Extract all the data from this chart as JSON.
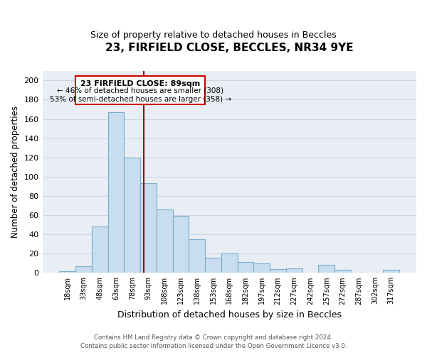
{
  "title": "23, FIRFIELD CLOSE, BECCLES, NR34 9YE",
  "subtitle": "Size of property relative to detached houses in Beccles",
  "xlabel": "Distribution of detached houses by size in Beccles",
  "ylabel": "Number of detached properties",
  "bar_color": "#c8ddef",
  "bar_edge_color": "#7aaecb",
  "background_color": "#e8eef4",
  "categories": [
    "18sqm",
    "33sqm",
    "48sqm",
    "63sqm",
    "78sqm",
    "93sqm",
    "108sqm",
    "123sqm",
    "138sqm",
    "153sqm",
    "168sqm",
    "182sqm",
    "197sqm",
    "212sqm",
    "227sqm",
    "242sqm",
    "257sqm",
    "272sqm",
    "287sqm",
    "302sqm",
    "317sqm"
  ],
  "values": [
    2,
    7,
    48,
    167,
    120,
    93,
    66,
    59,
    35,
    16,
    20,
    11,
    10,
    4,
    5,
    0,
    8,
    3,
    0,
    0,
    3
  ],
  "ylim": [
    0,
    210
  ],
  "yticks": [
    0,
    20,
    40,
    60,
    80,
    100,
    120,
    140,
    160,
    180,
    200
  ],
  "marker_label": "23 FIRFIELD CLOSE: 89sqm",
  "annotation_line1": "← 46% of detached houses are smaller (308)",
  "annotation_line2": "53% of semi-detached houses are larger (358) →",
  "footer1": "Contains HM Land Registry data © Crown copyright and database right 2024.",
  "footer2": "Contains public sector information licensed under the Open Government Licence v3.0.",
  "grid_color": "#c8d8e8",
  "marker_color": "#990000",
  "box_color": "#cc0000",
  "title_fontsize": 11,
  "subtitle_fontsize": 9
}
